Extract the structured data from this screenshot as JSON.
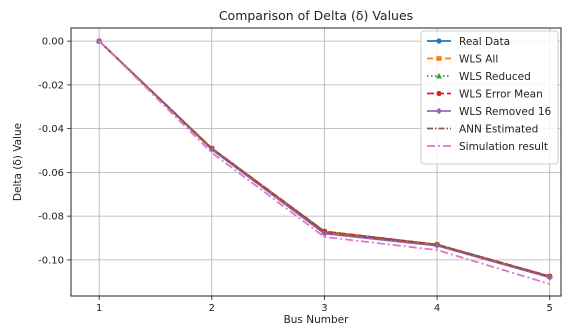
{
  "chart_data": {
    "type": "line",
    "title": "Comparison of Delta (δ) Values",
    "xlabel": "Bus Number",
    "ylabel": "Delta (δ) Value",
    "x": [
      1,
      2,
      3,
      4,
      5
    ],
    "xticks": [
      "1",
      "2",
      "3",
      "4",
      "5"
    ],
    "yticks": [
      "0.00",
      "-0.02",
      "-0.04",
      "-0.06",
      "-0.08",
      "-0.10"
    ],
    "xlim": [
      0.75,
      5.1
    ],
    "ylim": [
      -0.1165,
      0.006
    ],
    "grid": true,
    "legend_position": "top-right",
    "series": [
      {
        "name": "Real Data",
        "values": [
          0.0,
          -0.049,
          -0.087,
          -0.093,
          -0.1075
        ],
        "color": "#1f77b4",
        "dash": "",
        "marker": "circle"
      },
      {
        "name": "WLS All",
        "values": [
          0.0,
          -0.049,
          -0.087,
          -0.093,
          -0.1075
        ],
        "color": "#ff7f0e",
        "dash": "6 3",
        "marker": "square"
      },
      {
        "name": "WLS Reduced",
        "values": [
          0.0,
          -0.049,
          -0.087,
          -0.093,
          -0.1075
        ],
        "color": "#2ca02c",
        "dash": "1.5 2.5",
        "marker": "triangle"
      },
      {
        "name": "WLS Error Mean",
        "values": [
          0.0,
          -0.049,
          -0.087,
          -0.093,
          -0.1075
        ],
        "color": "#d62728",
        "dash": "7 3",
        "marker": "circle"
      },
      {
        "name": "WLS Removed 16",
        "values": [
          0.0,
          -0.0495,
          -0.088,
          -0.0935,
          -0.108
        ],
        "color": "#9467bd",
        "dash": "",
        "marker": "diamond"
      },
      {
        "name": "ANN Estimated",
        "values": [
          0.0,
          -0.0492,
          -0.0875,
          -0.0932,
          -0.1078
        ],
        "color": "#8c564b",
        "dash": "6 2 1.5 2",
        "marker": "none"
      },
      {
        "name": "Simulation result",
        "values": [
          0.0,
          -0.051,
          -0.0895,
          -0.0955,
          -0.111
        ],
        "color": "#e377c2",
        "dash": "8 3 2 3",
        "marker": "none"
      }
    ]
  }
}
